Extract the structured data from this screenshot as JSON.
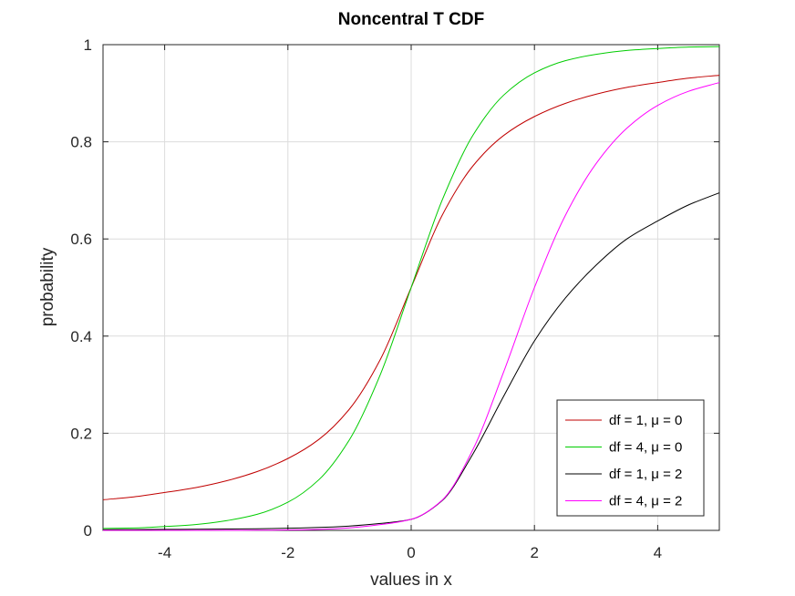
{
  "chart_data": {
    "type": "line",
    "title": "Noncentral T CDF",
    "xlabel": "values in x",
    "ylabel": "probability",
    "xlim": [
      -5,
      5
    ],
    "ylim": [
      0,
      1
    ],
    "xticks": [
      -4,
      -2,
      0,
      2,
      4
    ],
    "xtick_labels": [
      "-4",
      "-2",
      "0",
      "2",
      "4"
    ],
    "yticks": [
      0,
      0.2,
      0.4,
      0.6,
      0.8,
      1
    ],
    "ytick_labels": [
      "0",
      "0.2",
      "0.4",
      "0.6",
      "0.8",
      "1"
    ],
    "grid": true,
    "legend_position": "bottom-right",
    "x": [
      -5,
      -4.5,
      -4,
      -3.5,
      -3,
      -2.5,
      -2,
      -1.5,
      -1,
      -0.5,
      0,
      0.5,
      1,
      1.5,
      2,
      2.5,
      3,
      3.5,
      4,
      4.5,
      5
    ],
    "series": [
      {
        "name": "df = 1, μ = 0",
        "color": "#c00000",
        "values": [
          0.063,
          0.069,
          0.078,
          0.088,
          0.102,
          0.121,
          0.148,
          0.187,
          0.25,
          0.352,
          0.5,
          0.648,
          0.75,
          0.813,
          0.852,
          0.879,
          0.898,
          0.912,
          0.922,
          0.931,
          0.937
        ]
      },
      {
        "name": "df = 4, μ = 0",
        "color": "#00cc00",
        "values": [
          0.004,
          0.005,
          0.008,
          0.012,
          0.02,
          0.033,
          0.058,
          0.104,
          0.187,
          0.321,
          0.5,
          0.679,
          0.813,
          0.896,
          0.942,
          0.967,
          0.98,
          0.988,
          0.992,
          0.995,
          0.996
        ]
      },
      {
        "name": "df = 1, μ = 2",
        "color": "#000000",
        "values": [
          0.0015,
          0.0017,
          0.002,
          0.0023,
          0.0028,
          0.0034,
          0.0044,
          0.006,
          0.0089,
          0.0142,
          0.0228,
          0.061,
          0.157,
          0.276,
          0.39,
          0.478,
          0.546,
          0.6,
          0.637,
          0.67,
          0.695
        ]
      },
      {
        "name": "df = 4, μ = 2",
        "color": "#ff00ff",
        "values": [
          0.0,
          0.0,
          0.0001,
          0.0001,
          0.0002,
          0.0004,
          0.0009,
          0.0021,
          0.0052,
          0.0119,
          0.0228,
          0.062,
          0.166,
          0.326,
          0.5,
          0.648,
          0.755,
          0.828,
          0.875,
          0.904,
          0.922
        ]
      }
    ]
  }
}
